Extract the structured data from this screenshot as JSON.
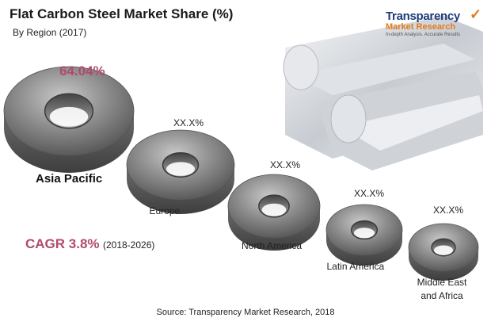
{
  "title": "Flat Carbon Steel Market Share (%)",
  "subtitle": "By Region (2017)",
  "headline_value": "64.04%",
  "cagr": {
    "label": "CAGR 3.8%",
    "range": "(2018-2026)"
  },
  "source": "Source: Transparency Market Research, 2018",
  "logo": {
    "name": "Transparency",
    "line2": "Market Research",
    "tagline": "In-depth Analysis. Accurate Results"
  },
  "colors": {
    "accent": "#b04b6b",
    "logo_blue": "#1c3c7a",
    "logo_orange": "#e07a1e"
  },
  "chart_data": {
    "type": "bar",
    "title": "Flat Carbon Steel Market Share (%)",
    "subtitle": "By Region (2017)",
    "categories": [
      "Asia Pacific",
      "Europe",
      "North America",
      "Latin America",
      "Middle East and Africa"
    ],
    "value_labels": [
      "64.04%",
      "XX.X%",
      "XX.X%",
      "XX.X%",
      "XX.X%"
    ],
    "values": [
      64.04,
      null,
      null,
      null,
      null
    ],
    "xlabel": "",
    "ylabel": ""
  }
}
